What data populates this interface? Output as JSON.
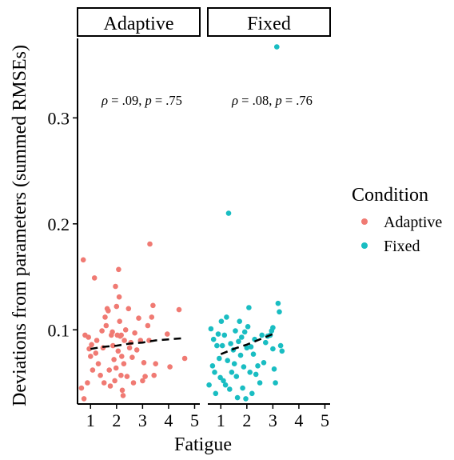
{
  "chart_data": {
    "type": "scatter",
    "facets": [
      {
        "label": "Adaptive",
        "annotation": {
          "rho_label": "ρ",
          "rho_value": " = .09, ",
          "p_label": "p",
          "p_value": " = .75"
        },
        "points": [
          [
            0.72,
            0.166
          ],
          [
            0.88,
            0.05
          ],
          [
            0.65,
            0.045
          ],
          [
            0.75,
            0.035
          ],
          [
            0.79,
            0.095
          ],
          [
            0.92,
            0.093
          ],
          [
            0.95,
            0.082
          ],
          [
            1.0,
            0.075
          ],
          [
            1.04,
            0.086
          ],
          [
            1.08,
            0.062
          ],
          [
            1.15,
            0.149
          ],
          [
            1.2,
            0.078
          ],
          [
            1.24,
            0.09
          ],
          [
            1.3,
            0.068
          ],
          [
            1.38,
            0.057
          ],
          [
            1.44,
            0.099
          ],
          [
            1.48,
            0.083
          ],
          [
            1.52,
            0.05
          ],
          [
            1.56,
            0.112
          ],
          [
            1.6,
            0.104
          ],
          [
            1.64,
            0.12
          ],
          [
            1.68,
            0.118
          ],
          [
            1.72,
            0.062
          ],
          [
            1.76,
            0.047
          ],
          [
            1.8,
            0.095
          ],
          [
            1.84,
            0.098
          ],
          [
            1.86,
            0.085
          ],
          [
            1.9,
            0.072
          ],
          [
            1.93,
            0.052
          ],
          [
            1.96,
            0.141
          ],
          [
            2.0,
            0.122
          ],
          [
            2.03,
            0.095
          ],
          [
            2.06,
            0.08
          ],
          [
            2.08,
            0.157
          ],
          [
            2.1,
            0.131
          ],
          [
            2.12,
            0.108
          ],
          [
            2.14,
            0.094
          ],
          [
            2.17,
            0.057
          ],
          [
            2.2,
            0.075
          ],
          [
            2.22,
            0.043
          ],
          [
            2.25,
            0.038
          ],
          [
            2.28,
            0.068
          ],
          [
            2.3,
            0.09
          ],
          [
            2.35,
            0.1
          ],
          [
            2.4,
            0.056
          ],
          [
            2.46,
            0.12
          ],
          [
            2.5,
            0.083
          ],
          [
            2.55,
            0.088
          ],
          [
            2.6,
            0.074
          ],
          [
            2.65,
            0.05
          ],
          [
            2.7,
            0.097
          ],
          [
            2.78,
            0.081
          ],
          [
            2.85,
            0.111
          ],
          [
            2.92,
            0.09
          ],
          [
            3.0,
            0.052
          ],
          [
            3.05,
            0.069
          ],
          [
            3.1,
            0.056
          ],
          [
            3.2,
            0.104
          ],
          [
            3.25,
            0.09
          ],
          [
            3.28,
            0.181
          ],
          [
            3.35,
            0.112
          ],
          [
            3.4,
            0.123
          ],
          [
            3.44,
            0.057
          ],
          [
            3.5,
            0.068
          ],
          [
            3.95,
            0.096
          ],
          [
            4.05,
            0.065
          ],
          [
            4.4,
            0.119
          ],
          [
            4.62,
            0.073
          ],
          [
            1.98,
            0.064
          ],
          [
            2.18,
            0.095
          ]
        ],
        "trend": [
          [
            1.0,
            0.082
          ],
          [
            1.5,
            0.084
          ],
          [
            2.0,
            0.085
          ],
          [
            2.5,
            0.087
          ],
          [
            3.0,
            0.088
          ],
          [
            3.5,
            0.09
          ],
          [
            4.0,
            0.091
          ],
          [
            4.5,
            0.092
          ]
        ]
      },
      {
        "label": "Fixed",
        "annotation": {
          "rho_label": "ρ",
          "rho_value": " = .08, ",
          "p_label": "p",
          "p_value": " = .76"
        },
        "points": [
          [
            0.55,
            0.048
          ],
          [
            0.62,
            0.101
          ],
          [
            0.68,
            0.066
          ],
          [
            0.72,
            0.091
          ],
          [
            0.76,
            0.06
          ],
          [
            0.8,
            0.04
          ],
          [
            0.85,
            0.085
          ],
          [
            0.9,
            0.096
          ],
          [
            0.94,
            0.073
          ],
          [
            0.98,
            0.055
          ],
          [
            1.02,
            0.108
          ],
          [
            1.06,
            0.085
          ],
          [
            1.1,
            0.052
          ],
          [
            1.14,
            0.095
          ],
          [
            1.18,
            0.048
          ],
          [
            1.22,
            0.112
          ],
          [
            1.26,
            0.071
          ],
          [
            1.3,
            0.21
          ],
          [
            1.34,
            0.044
          ],
          [
            1.38,
            0.087
          ],
          [
            1.42,
            0.06
          ],
          [
            1.48,
            0.081
          ],
          [
            1.52,
            0.068
          ],
          [
            1.56,
            0.099
          ],
          [
            1.6,
            0.056
          ],
          [
            1.64,
            0.036
          ],
          [
            1.68,
            0.089
          ],
          [
            1.72,
            0.108
          ],
          [
            1.76,
            0.076
          ],
          [
            1.8,
            0.093
          ],
          [
            1.84,
            0.045
          ],
          [
            1.88,
            0.065
          ],
          [
            1.92,
            0.098
          ],
          [
            1.96,
            0.035
          ],
          [
            2.0,
            0.083
          ],
          [
            2.04,
            0.103
          ],
          [
            2.08,
            0.121
          ],
          [
            2.12,
            0.06
          ],
          [
            2.16,
            0.084
          ],
          [
            2.2,
            0.04
          ],
          [
            2.25,
            0.077
          ],
          [
            2.3,
            0.091
          ],
          [
            2.35,
            0.058
          ],
          [
            2.42,
            0.066
          ],
          [
            2.5,
            0.05
          ],
          [
            2.58,
            0.095
          ],
          [
            2.65,
            0.069
          ],
          [
            2.72,
            0.088
          ],
          [
            2.8,
            0.094
          ],
          [
            2.9,
            0.095
          ],
          [
            3.0,
            0.102
          ],
          [
            3.05,
            0.063
          ],
          [
            3.1,
            0.05
          ],
          [
            3.15,
            0.367
          ],
          [
            3.2,
            0.125
          ],
          [
            3.25,
            0.117
          ],
          [
            3.3,
            0.085
          ],
          [
            3.35,
            0.08
          ],
          [
            3.0,
            0.082
          ],
          [
            2.95,
            0.099
          ]
        ],
        "trend": [
          [
            1.0,
            0.077
          ],
          [
            1.5,
            0.082
          ],
          [
            2.0,
            0.086
          ],
          [
            2.5,
            0.091
          ],
          [
            3.0,
            0.096
          ]
        ]
      }
    ],
    "xlabel": "Fatigue",
    "ylabel": "Deviations from parameters (summed RMSEs)",
    "xlim": [
      0.5,
      5.2
    ],
    "ylim": [
      0.03,
      0.375
    ],
    "xticks": [
      1,
      2,
      3,
      4,
      5
    ],
    "yticks": [
      0.1,
      0.2,
      0.3
    ],
    "ytick_labels": [
      "0.1",
      "0.2",
      "0.3"
    ],
    "grid": false,
    "legend": {
      "title": "Condition",
      "placement": "right",
      "entries": [
        {
          "name": "Adaptive",
          "color": "#F07A73"
        },
        {
          "name": "Fixed",
          "color": "#19BDC2"
        }
      ]
    },
    "trend_color": "#000000",
    "trend_style": "dashed"
  }
}
